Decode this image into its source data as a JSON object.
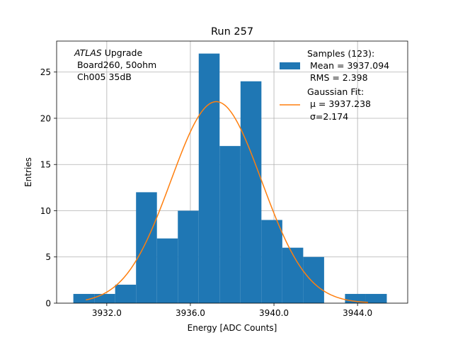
{
  "chart_data": {
    "type": "bar",
    "title": "Run 257",
    "xlabel": "Energy [ADC Counts]",
    "ylabel": "Entries",
    "xlim": [
      3929.6,
      3946.4
    ],
    "ylim": [
      0,
      28.35
    ],
    "grid": true,
    "x_ticks": [
      {
        "value": 3932.0,
        "label": "3932.0"
      },
      {
        "value": 3936.0,
        "label": "3936.0"
      },
      {
        "value": 3940.0,
        "label": "3940.0"
      },
      {
        "value": 3944.0,
        "label": "3944.0"
      }
    ],
    "y_ticks": [
      {
        "value": 0,
        "label": "0"
      },
      {
        "value": 5,
        "label": "5"
      },
      {
        "value": 10,
        "label": "10"
      },
      {
        "value": 15,
        "label": "15"
      },
      {
        "value": 20,
        "label": "20"
      },
      {
        "value": 25,
        "label": "25"
      }
    ],
    "histogram": {
      "color": "#1f77b4",
      "bin_edges": [
        3930.4,
        3931.4,
        3932.4,
        3933.4,
        3934.4,
        3935.4,
        3936.4,
        3937.4,
        3938.4,
        3939.4,
        3940.4,
        3941.4,
        3942.4,
        3943.4,
        3944.4,
        3945.4
      ],
      "counts": [
        1,
        1,
        2,
        12,
        7,
        10,
        27,
        17,
        24,
        9,
        6,
        5,
        0,
        1,
        1
      ]
    },
    "fit": {
      "type": "gaussian",
      "color": "#ff7f0e",
      "mu": 3937.238,
      "sigma": 2.174,
      "amplitude": 21.8,
      "x_range": [
        3931.0,
        3944.5
      ]
    },
    "annotation": {
      "italic": "ATLAS",
      "line1_rest": " Upgrade",
      "line2": " Board260, 50ohm",
      "line3": " Ch005 35dB"
    },
    "legend": {
      "position": "top-right",
      "samples_lines": [
        "Samples (123):",
        " Mean = 3937.094",
        " RMS = 2.398"
      ],
      "fit_lines": [
        "Gaussian Fit:",
        " μ = 3937.238",
        " σ=2.174"
      ]
    }
  }
}
